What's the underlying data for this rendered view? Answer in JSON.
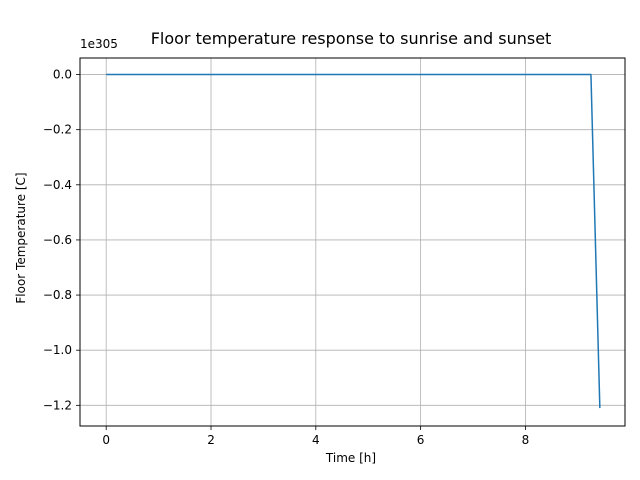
{
  "chart_data": {
    "type": "line",
    "title": "Floor temperature response to sunrise and sunset",
    "xlabel": "Time [h]",
    "ylabel": "Floor Temperature [C]",
    "y_offset_label": "1e305",
    "y_scale_factor": "1e305",
    "xlim": [
      -0.5,
      9.9
    ],
    "ylim": [
      -1.275,
      0.06
    ],
    "x_ticks": [
      0,
      2,
      4,
      6,
      8
    ],
    "x_tick_labels": [
      "0",
      "2",
      "4",
      "6",
      "8"
    ],
    "y_ticks": [
      0.0,
      -0.2,
      -0.4,
      -0.6,
      -0.8,
      -1.0,
      -1.2
    ],
    "y_tick_labels": [
      "0.0",
      "−0.2",
      "−0.4",
      "−0.6",
      "−0.8",
      "−1.0",
      "−1.2"
    ],
    "grid": true,
    "series": [
      {
        "color": "#1f77b4",
        "x": [
          0,
          1,
          2,
          3,
          4,
          5,
          6,
          7,
          8,
          9,
          9.25,
          9.42
        ],
        "y": [
          0,
          0,
          0,
          0,
          0,
          0,
          0,
          0,
          0,
          0,
          0,
          -1.21
        ]
      }
    ]
  }
}
